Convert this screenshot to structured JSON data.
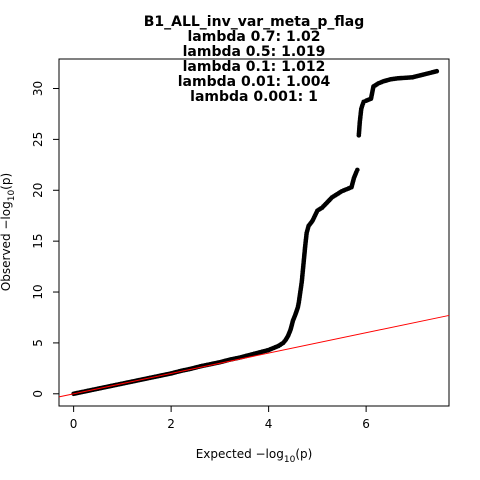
{
  "chart_data": {
    "type": "scatter",
    "title_lines": [
      "B1_ALL_inv_var_meta_p_flag",
      "lambda 0.7: 1.02",
      "lambda 0.5: 1.019",
      "lambda 0.1: 1.012",
      "lambda 0.01: 1.004",
      "lambda 0.001: 1"
    ],
    "xlabel": {
      "prefix": "Expected  −log",
      "sub": "10",
      "suffix": "(p)"
    },
    "ylabel": {
      "prefix": "Observed  −log",
      "sub": "10",
      "suffix": "(p)"
    },
    "xlim": [
      -0.3,
      7.7
    ],
    "ylim": [
      -1.2,
      32.9
    ],
    "x_ticks": [
      0,
      2,
      4,
      6
    ],
    "y_ticks": [
      0,
      5,
      10,
      15,
      20,
      25,
      30
    ],
    "reference_line": {
      "x": [
        -0.3,
        7.7
      ],
      "y": [
        -0.3,
        7.7
      ],
      "color": "#ff0000"
    },
    "point_color": "#000000",
    "grid": false,
    "points": [
      [
        0.0,
        0.0
      ],
      [
        0.2,
        0.2
      ],
      [
        0.4,
        0.4
      ],
      [
        0.6,
        0.6
      ],
      [
        0.8,
        0.8
      ],
      [
        1.0,
        1.0
      ],
      [
        1.2,
        1.2
      ],
      [
        1.4,
        1.4
      ],
      [
        1.6,
        1.6
      ],
      [
        1.8,
        1.8
      ],
      [
        2.0,
        2.0
      ],
      [
        2.2,
        2.25
      ],
      [
        2.4,
        2.45
      ],
      [
        2.6,
        2.7
      ],
      [
        2.8,
        2.9
      ],
      [
        3.0,
        3.1
      ],
      [
        3.2,
        3.35
      ],
      [
        3.4,
        3.55
      ],
      [
        3.6,
        3.8
      ],
      [
        3.8,
        4.05
      ],
      [
        4.0,
        4.3
      ],
      [
        4.1,
        4.5
      ],
      [
        4.2,
        4.7
      ],
      [
        4.3,
        5.0
      ],
      [
        4.35,
        5.3
      ],
      [
        4.4,
        5.7
      ],
      [
        4.45,
        6.3
      ],
      [
        4.5,
        7.2
      ],
      [
        4.55,
        7.8
      ],
      [
        4.6,
        8.5
      ],
      [
        4.62,
        9.0
      ],
      [
        4.65,
        10.0
      ],
      [
        4.68,
        11.0
      ],
      [
        4.7,
        12.0
      ],
      [
        4.72,
        13.0
      ],
      [
        4.75,
        14.5
      ],
      [
        4.78,
        15.8
      ],
      [
        4.82,
        16.5
      ],
      [
        4.9,
        17.0
      ],
      [
        4.95,
        17.5
      ],
      [
        5.0,
        18.0
      ],
      [
        5.1,
        18.3
      ],
      [
        5.2,
        18.8
      ],
      [
        5.3,
        19.3
      ],
      [
        5.4,
        19.6
      ],
      [
        5.5,
        19.9
      ],
      [
        5.6,
        20.1
      ],
      [
        5.7,
        20.3
      ],
      [
        5.75,
        21.2
      ],
      [
        5.8,
        21.8
      ],
      [
        5.82,
        22.0
      ],
      [
        5.85,
        25.4
      ],
      [
        5.87,
        26.7
      ],
      [
        5.9,
        28.0
      ],
      [
        5.92,
        28.3
      ],
      [
        5.95,
        28.7
      ],
      [
        6.0,
        28.8
      ],
      [
        6.1,
        29.0
      ],
      [
        6.15,
        30.2
      ],
      [
        6.25,
        30.5
      ],
      [
        6.35,
        30.7
      ],
      [
        6.5,
        30.9
      ],
      [
        6.65,
        31.0
      ],
      [
        6.95,
        31.1
      ],
      [
        7.45,
        31.7
      ]
    ]
  }
}
